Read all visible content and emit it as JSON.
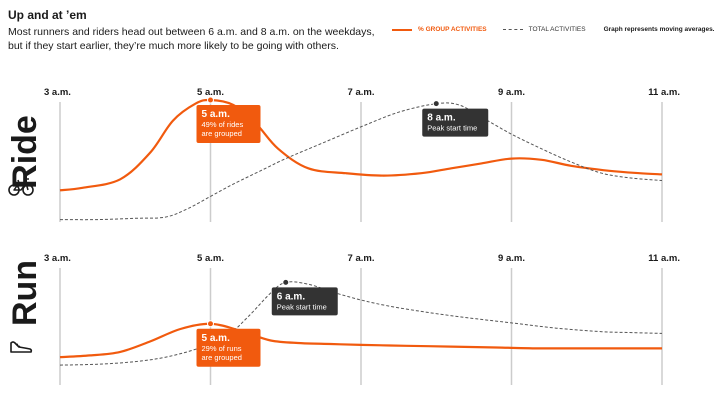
{
  "header": {
    "title": "Up and at ’em",
    "subtitle": "Most runners and riders head out between 6 a.m. and 8 a.m. on the weekdays, but if they start earlier, they’re much more likely to be going with others."
  },
  "legend": {
    "group_label": "% GROUP ACTIVITIES",
    "total_label": "TOTAL ACTIVITIES",
    "note": "Graph represents moving averages."
  },
  "colors": {
    "group": "#f15a0e",
    "total": "#555555",
    "grid": "#cccccc",
    "callout_dark": "#333333"
  },
  "icons": {
    "ride": "bicycle-icon",
    "run": "running-shoe-icon"
  },
  "chart_data": [
    {
      "type": "line",
      "panel": "Ride",
      "x_ticks": [
        "3 a.m.",
        "5 a.m.",
        "7 a.m.",
        "9 a.m.",
        "11 a.m."
      ],
      "x_hours": [
        3,
        5,
        7,
        9,
        11
      ],
      "xlim": [
        3,
        11
      ],
      "series": [
        {
          "name": "% GROUP ACTIVITIES",
          "style": "solid",
          "x": [
            3,
            3.3,
            3.8,
            4.2,
            4.5,
            4.8,
            5.0,
            5.3,
            5.6,
            5.9,
            6.3,
            6.8,
            7.3,
            7.8,
            8.2,
            8.6,
            9.0,
            9.4,
            9.8,
            10.3,
            10.7,
            11.0
          ],
          "y": [
            0.26,
            0.28,
            0.35,
            0.57,
            0.83,
            0.97,
            1.0,
            0.96,
            0.81,
            0.6,
            0.44,
            0.4,
            0.38,
            0.4,
            0.44,
            0.48,
            0.52,
            0.51,
            0.46,
            0.42,
            0.4,
            0.39
          ]
        },
        {
          "name": "TOTAL ACTIVITIES",
          "style": "dashed",
          "x": [
            3,
            3.5,
            4.0,
            4.4,
            4.7,
            5.0,
            5.3,
            5.7,
            6.0,
            6.5,
            7.0,
            7.5,
            8.0,
            8.3,
            8.6,
            9.0,
            9.4,
            9.8,
            10.2,
            10.6,
            11.0
          ],
          "y": [
            0.02,
            0.02,
            0.03,
            0.04,
            0.11,
            0.21,
            0.31,
            0.43,
            0.52,
            0.65,
            0.78,
            0.9,
            0.97,
            0.96,
            0.86,
            0.72,
            0.6,
            0.49,
            0.4,
            0.36,
            0.34
          ]
        }
      ],
      "callouts": [
        {
          "x": 5,
          "head": "5 a.m.",
          "lines": [
            "49% of rides",
            "are grouped"
          ],
          "style": "orange"
        },
        {
          "x": 8,
          "head": "8 a.m.",
          "lines": [
            "Peak start time"
          ],
          "style": "dark"
        }
      ]
    },
    {
      "type": "line",
      "panel": "Run",
      "x_ticks": [
        "3 a.m.",
        "5 a.m.",
        "7 a.m.",
        "9 a.m.",
        "11 a.m."
      ],
      "x_hours": [
        3,
        5,
        7,
        9,
        11
      ],
      "xlim": [
        3,
        11
      ],
      "series": [
        {
          "name": "% GROUP ACTIVITIES",
          "style": "solid",
          "x": [
            3,
            3.4,
            3.8,
            4.2,
            4.6,
            5.0,
            5.4,
            5.8,
            6.2,
            6.6,
            7.0,
            7.6,
            8.2,
            8.8,
            9.4,
            10.0,
            10.6,
            11.0
          ],
          "y": [
            0.1,
            0.12,
            0.16,
            0.28,
            0.42,
            0.48,
            0.4,
            0.29,
            0.26,
            0.25,
            0.24,
            0.23,
            0.22,
            0.21,
            0.2,
            0.2,
            0.2,
            0.2
          ]
        },
        {
          "name": "TOTAL ACTIVITIES",
          "style": "dashed",
          "x": [
            3,
            3.5,
            4.0,
            4.4,
            4.8,
            5.2,
            5.5,
            5.8,
            6.0,
            6.3,
            6.7,
            7.2,
            7.8,
            8.4,
            9.0,
            9.6,
            10.2,
            10.6,
            11.0
          ],
          "y": [
            0.01,
            0.02,
            0.05,
            0.1,
            0.19,
            0.33,
            0.56,
            0.83,
            0.95,
            0.93,
            0.82,
            0.71,
            0.62,
            0.55,
            0.49,
            0.43,
            0.39,
            0.38,
            0.37
          ]
        }
      ],
      "callouts": [
        {
          "x": 5,
          "head": "5 a.m.",
          "lines": [
            "29% of runs",
            "are grouped"
          ],
          "style": "orange"
        },
        {
          "x": 6,
          "head": "6 a.m.",
          "lines": [
            "Peak start time"
          ],
          "style": "dark"
        }
      ]
    }
  ]
}
